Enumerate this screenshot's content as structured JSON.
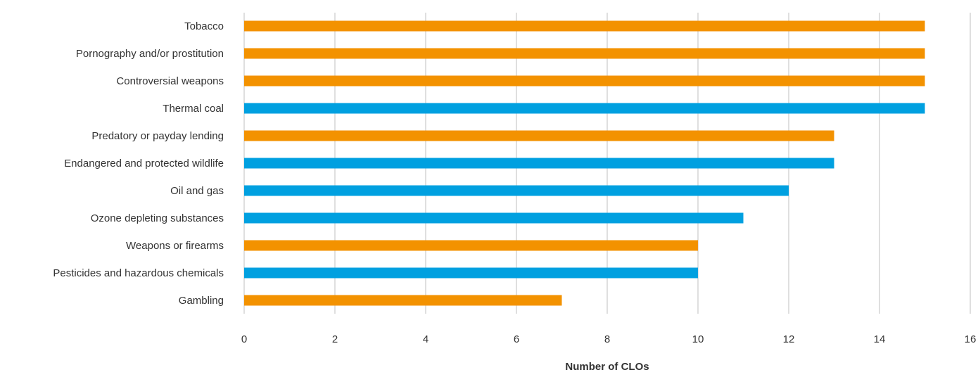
{
  "chart_data": {
    "type": "bar",
    "orientation": "horizontal",
    "categories": [
      "Tobacco",
      "Pornography and/or prostitution",
      "Controversial weapons",
      "Thermal coal",
      "Predatory or payday lending",
      "Endangered and protected wildlife",
      "Oil and gas",
      "Ozone depleting substances",
      "Weapons or firearms",
      "Pesticides and hazardous chemicals",
      "Gambling"
    ],
    "values": [
      15,
      15,
      15,
      15,
      13,
      13,
      12,
      11,
      10,
      10,
      7
    ],
    "bar_colors": [
      "#F39200",
      "#F39200",
      "#F39200",
      "#00A0E0",
      "#F39200",
      "#00A0E0",
      "#00A0E0",
      "#00A0E0",
      "#F39200",
      "#00A0E0",
      "#F39200"
    ],
    "title": "",
    "xlabel": "Number of CLOs",
    "ylabel": "",
    "xlim": [
      0,
      16
    ],
    "xticks": [
      0,
      2,
      4,
      6,
      8,
      10,
      12,
      14,
      16
    ],
    "xtick_labels": [
      "0",
      "2",
      "4",
      "6",
      "8",
      "10",
      "12",
      "14",
      "16"
    ],
    "grid": "vertical",
    "legend": "none",
    "colors": {
      "grid": "#BFBFBF",
      "axis": "#BFBFBF",
      "text": "#333333"
    }
  }
}
